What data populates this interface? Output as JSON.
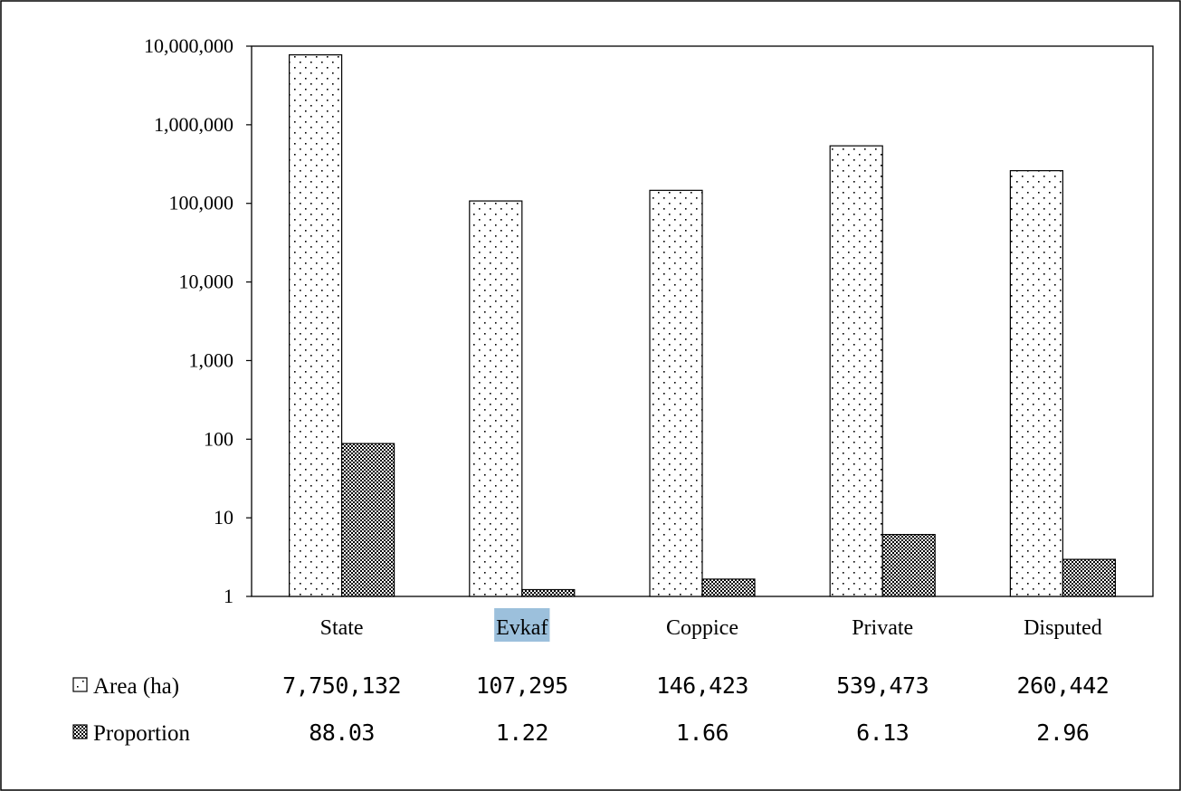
{
  "chart_data": {
    "type": "bar",
    "categories": [
      "State",
      "Evkaf",
      "Coppice",
      "Private",
      "Disputed"
    ],
    "selected_category": "Evkaf",
    "selection_color": "#9cc0dc",
    "series": [
      {
        "name": "Area (ha)",
        "values": [
          7750132,
          107295,
          146423,
          539473,
          260442
        ],
        "pattern": "dots"
      },
      {
        "name": "Proportion",
        "values": [
          88.03,
          1.22,
          1.66,
          6.13,
          2.96
        ],
        "pattern": "checker"
      }
    ],
    "y_scale": "log",
    "ylim": [
      1,
      10000000
    ],
    "y_ticks": [
      1,
      10,
      100,
      1000,
      10000,
      100000,
      1000000,
      10000000
    ],
    "y_tick_labels": [
      "1",
      "10",
      "100",
      "1,000",
      "10,000",
      "100,000",
      "1,000,000",
      "10,000,000"
    ],
    "grid": false,
    "legend": "data table below chart",
    "table": {
      "rows": [
        {
          "label": "Area (ha)",
          "values": [
            "7,750,132",
            "107,295",
            "146,423",
            "539,473",
            "260,442"
          ]
        },
        {
          "label": "Proportion",
          "values": [
            "88.03",
            "1.22",
            "1.66",
            "6.13",
            "2.96"
          ]
        }
      ]
    }
  }
}
